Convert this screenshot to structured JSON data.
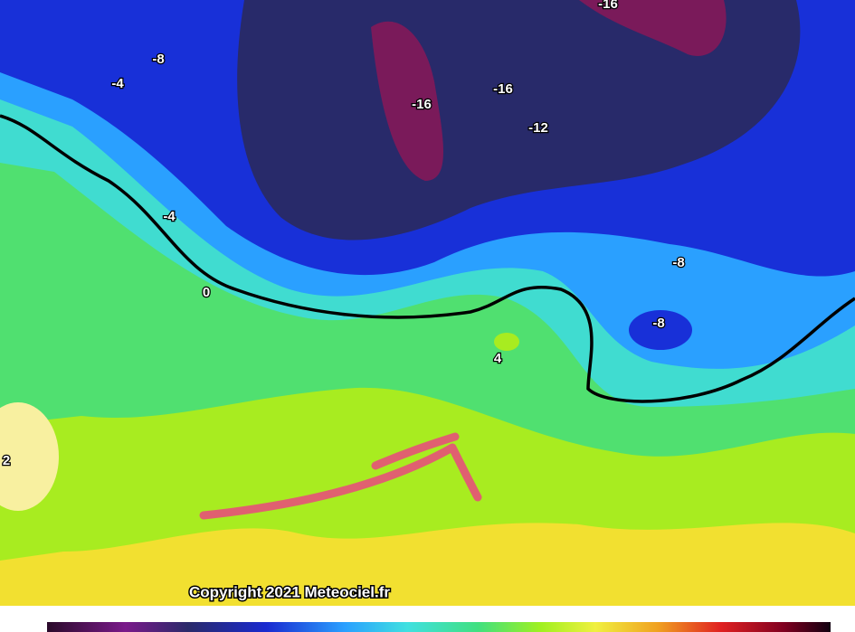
{
  "labels": [
    "-16",
    "-8",
    "-4",
    "-16",
    "-16",
    "-12",
    "-4",
    "0",
    "-8",
    "-8",
    "4",
    "2"
  ],
  "copyright": "Copyright 2021 Meteociel.fr"
}
